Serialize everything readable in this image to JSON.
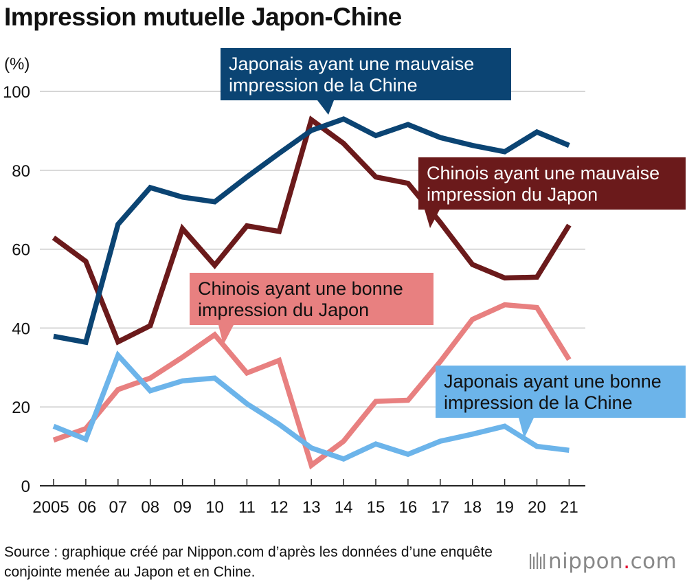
{
  "title": "Impression mutuelle Japon-Chine",
  "unit_label": "(%)",
  "source": "Source : graphique créé par Nippon.com d’après les données d’une enquête conjointe menée au Japon et en Chine.",
  "logo": {
    "main": "nippon",
    "dot": ".",
    "suffix": "com"
  },
  "chart_data": {
    "type": "line",
    "title": "Impression mutuelle Japon-Chine",
    "ylabel": "(%)",
    "xlabel": "",
    "ylim": [
      0,
      100
    ],
    "yticks": [
      0,
      20,
      40,
      60,
      80,
      100
    ],
    "grid": true,
    "categories": [
      "2005",
      "06",
      "07",
      "08",
      "09",
      "10",
      "11",
      "12",
      "13",
      "14",
      "15",
      "16",
      "17",
      "18",
      "19",
      "20",
      "21"
    ],
    "series": [
      {
        "name": "Japonais ayant une mauvaise impression de la Chine",
        "label_lines": [
          "Japonais ayant une mauvaise",
          "impression de la Chine"
        ],
        "color": "#0b4473",
        "label_text_color": "#ffffff",
        "values": [
          37.9,
          36.4,
          66.3,
          75.6,
          73.2,
          72.0,
          78.3,
          84.3,
          90.1,
          93.0,
          88.8,
          91.6,
          88.3,
          86.3,
          84.7,
          89.7,
          86.3
        ]
      },
      {
        "name": "Chinois ayant une mauvaise impression du Japon",
        "label_lines": [
          "Chinois ayant une mauvaise",
          "impression du Japon"
        ],
        "color": "#6b1a1b",
        "label_text_color": "#ffffff",
        "values": [
          62.9,
          56.9,
          36.5,
          40.6,
          65.2,
          55.9,
          65.9,
          64.5,
          92.8,
          86.8,
          78.3,
          76.7,
          66.8,
          56.1,
          52.7,
          52.9,
          66.1
        ]
      },
      {
        "name": "Chinois ayant une bonne impression du Japon",
        "label_lines": [
          "Chinois ayant une bonne",
          "impression du Japon"
        ],
        "color": "#e88080",
        "label_text_color": "#111111",
        "values": [
          11.6,
          14.5,
          24.4,
          27.3,
          32.6,
          38.3,
          28.6,
          31.8,
          5.2,
          11.3,
          21.4,
          21.7,
          31.5,
          42.2,
          45.9,
          45.2,
          32.0
        ]
      },
      {
        "name": "Japonais ayant une bonne impression de la Chine",
        "label_lines": [
          "Japonais ayant une bonne",
          "impression de la Chine"
        ],
        "color": "#6cb4ea",
        "label_text_color": "#111111",
        "values": [
          15.1,
          11.8,
          33.1,
          24.1,
          26.6,
          27.3,
          20.8,
          15.6,
          9.6,
          6.8,
          10.6,
          8.0,
          11.3,
          13.1,
          15.1,
          10.0,
          9.0
        ]
      }
    ]
  }
}
